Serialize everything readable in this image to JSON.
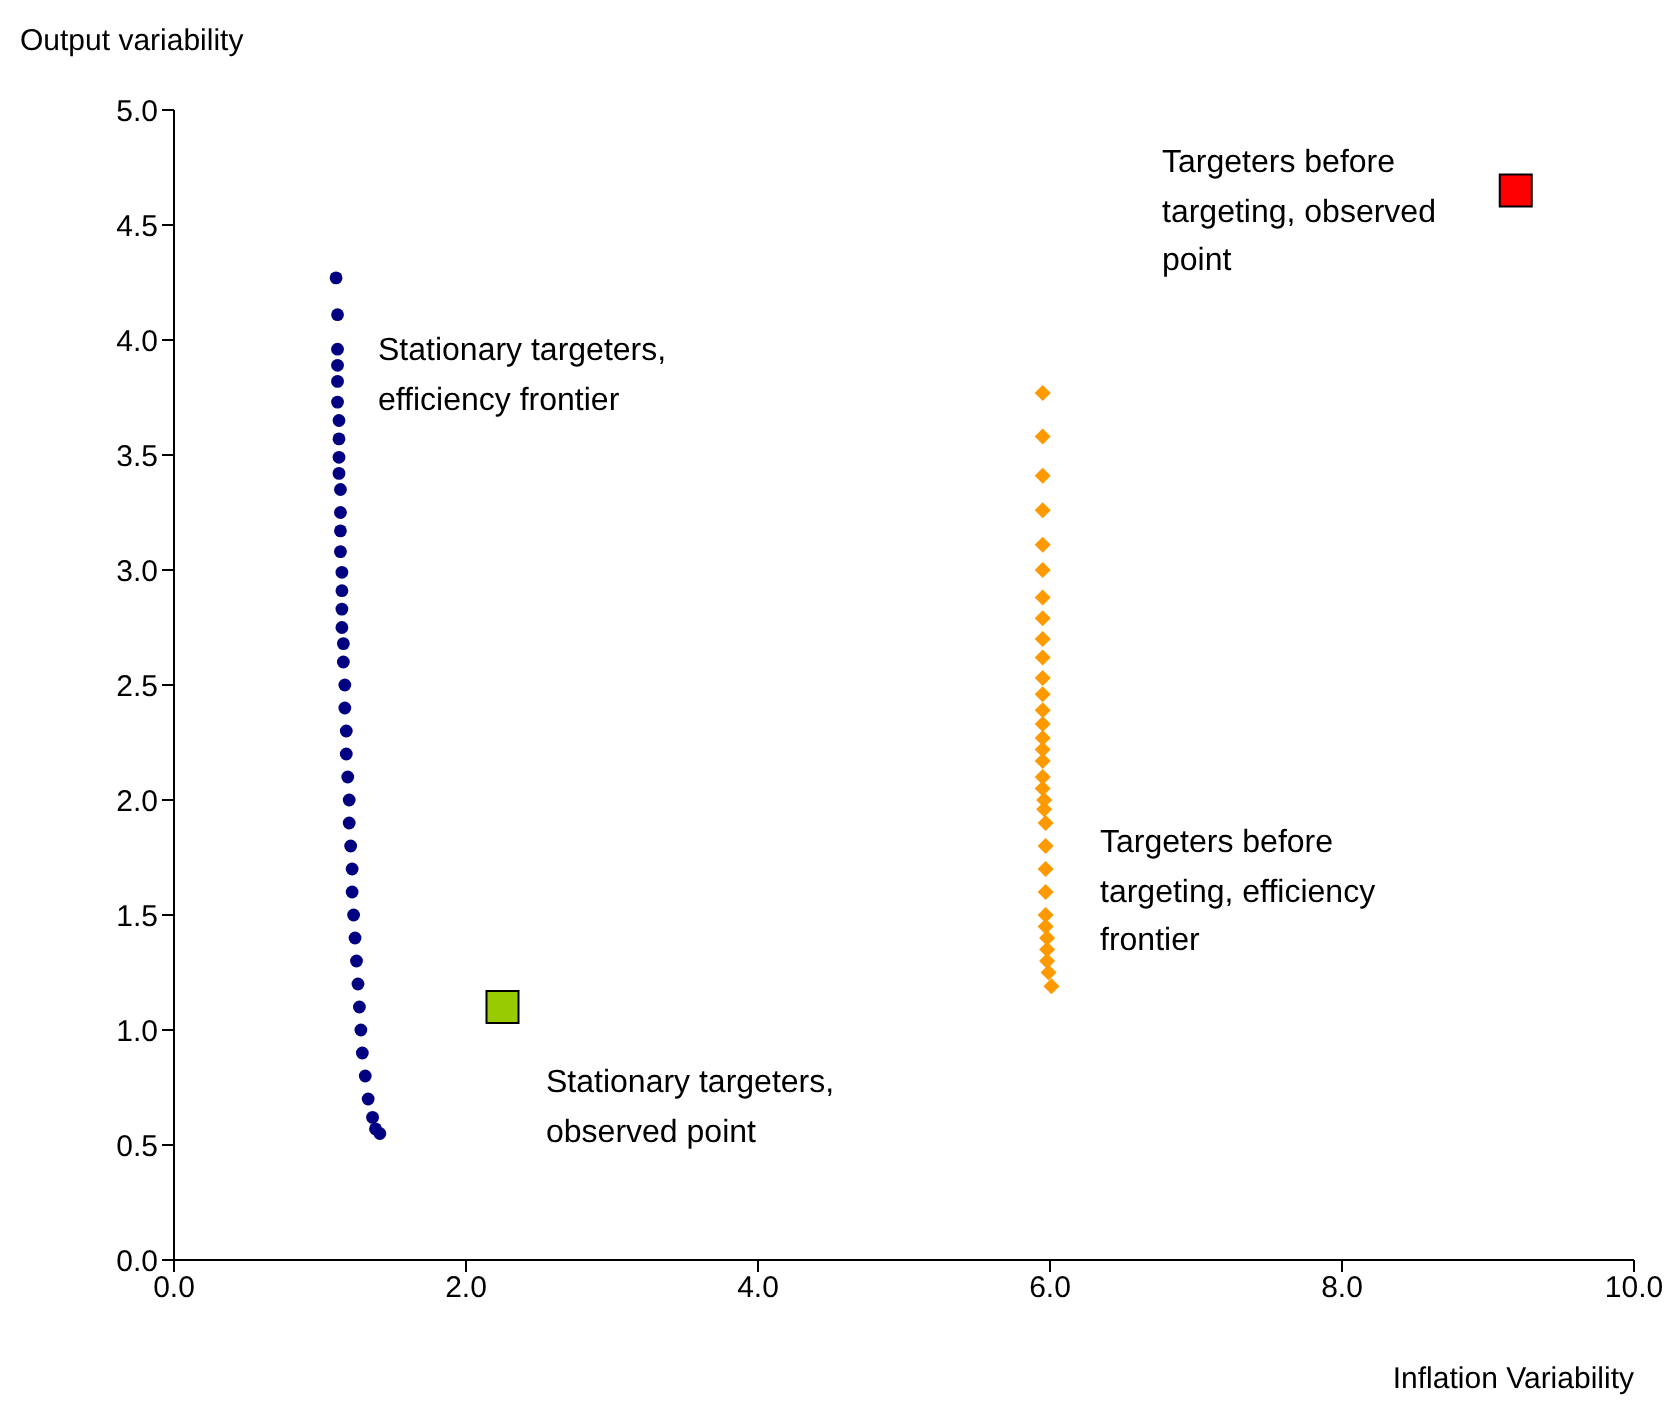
{
  "chart_data": {
    "type": "scatter",
    "xlabel": "Inflation Variability",
    "ylabel": "Output variability",
    "xlim": [
      0,
      10
    ],
    "ylim": [
      0,
      5
    ],
    "xticks": [
      {
        "value": 0,
        "label": "0.0"
      },
      {
        "value": 2,
        "label": "2.0"
      },
      {
        "value": 4,
        "label": "4.0"
      },
      {
        "value": 6,
        "label": "6.0"
      },
      {
        "value": 8,
        "label": "8.0"
      },
      {
        "value": 10,
        "label": "10.0"
      }
    ],
    "yticks": [
      {
        "value": 0,
        "label": "0.0"
      },
      {
        "value": 0.5,
        "label": "0.5"
      },
      {
        "value": 1,
        "label": "1.0"
      },
      {
        "value": 1.5,
        "label": "1.5"
      },
      {
        "value": 2,
        "label": "2.0"
      },
      {
        "value": 2.5,
        "label": "2.5"
      },
      {
        "value": 3,
        "label": "3.0"
      },
      {
        "value": 3.5,
        "label": "3.5"
      },
      {
        "value": 4,
        "label": "4.0"
      },
      {
        "value": 4.5,
        "label": "4.5"
      },
      {
        "value": 5,
        "label": "5.0"
      }
    ],
    "grid": false,
    "legend": false,
    "series": [
      {
        "color": "#000080",
        "marker": "circle",
        "x": [
          1.11,
          1.12,
          1.12,
          1.12,
          1.12,
          1.12,
          1.13,
          1.13,
          1.13,
          1.13,
          1.14,
          1.14,
          1.14,
          1.14,
          1.15,
          1.15,
          1.15,
          1.15,
          1.16,
          1.16,
          1.17,
          1.17,
          1.18,
          1.18,
          1.19,
          1.2,
          1.2,
          1.21,
          1.22,
          1.22,
          1.23,
          1.24,
          1.25,
          1.26,
          1.27,
          1.28,
          1.29,
          1.31,
          1.33,
          1.36,
          1.38,
          1.41
        ],
        "values": [
          4.27,
          4.11,
          3.96,
          3.89,
          3.82,
          3.73,
          3.65,
          3.57,
          3.49,
          3.42,
          3.35,
          3.25,
          3.17,
          3.08,
          2.99,
          2.91,
          2.83,
          2.75,
          2.68,
          2.6,
          2.5,
          2.4,
          2.3,
          2.2,
          2.1,
          2,
          1.9,
          1.8,
          1.7,
          1.6,
          1.5,
          1.4,
          1.3,
          1.2,
          1.1,
          1,
          0.9,
          0.8,
          0.7,
          0.62,
          0.57,
          0.55
        ]
      },
      {
        "color": "#ff9900",
        "marker": "diamond",
        "x": [
          5.95,
          5.95,
          5.95,
          5.95,
          5.95,
          5.95,
          5.95,
          5.95,
          5.95,
          5.95,
          5.95,
          5.95,
          5.95,
          5.95,
          5.95,
          5.95,
          5.95,
          5.95,
          5.95,
          5.96,
          5.96,
          5.97,
          5.97,
          5.97,
          5.97,
          5.97,
          5.97,
          5.98,
          5.98,
          5.98,
          5.99,
          6.01
        ],
        "values": [
          3.77,
          3.58,
          3.41,
          3.26,
          3.11,
          3,
          2.88,
          2.79,
          2.7,
          2.62,
          2.53,
          2.46,
          2.39,
          2.33,
          2.27,
          2.22,
          2.17,
          2.1,
          2.05,
          2,
          1.96,
          1.9,
          1.8,
          1.7,
          1.6,
          1.5,
          1.45,
          1.4,
          1.35,
          1.3,
          1.25,
          1.19
        ]
      },
      {
        "color": "#99cc00",
        "marker": "square",
        "x": [
          2.25
        ],
        "values": [
          1.1
        ]
      },
      {
        "color": "#ff0000",
        "marker": "square",
        "x": [
          9.19
        ],
        "values": [
          4.65
        ]
      }
    ],
    "annotations": [
      "Stationary targeters,\nefficiency frontier",
      "Stationary targeters,\nobserved point",
      "Targeters before\ntargeting, efficiency\nfrontier",
      "Targeters before\ntargeting, observed\npoint"
    ]
  }
}
